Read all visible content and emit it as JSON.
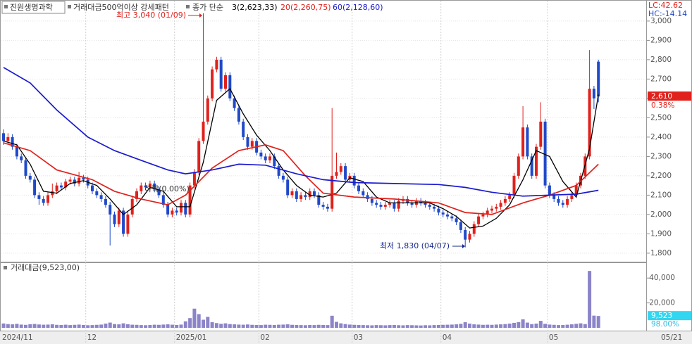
{
  "chart_data": {
    "type": "candlestick",
    "title": "진원생명과학",
    "subtitle": "거래대금500억이상 강세패턴",
    "ma_label": "종가 단순",
    "lc": "LC:42.62",
    "hc": "HC:-14.14",
    "annotations": [
      "최고 3,040 (01/09)",
      "최저 1,830 (04/07)",
      "하락(0.00%)"
    ],
    "up_color": "#e0211c",
    "down_color": "#1f49c9",
    "ylim": [
      1756,
      3105
    ],
    "yticks": [
      {
        "value": 1800,
        "label": "1,800"
      },
      {
        "value": 1900,
        "label": "1,900"
      },
      {
        "value": 2000,
        "label": "2,000"
      },
      {
        "value": 2100,
        "label": "2,100"
      },
      {
        "value": 2200,
        "label": "2,200"
      },
      {
        "value": 2300,
        "label": "2,300"
      },
      {
        "value": 2400,
        "label": "2,400"
      },
      {
        "value": 2500,
        "label": "2,500"
      },
      {
        "value": 2600,
        "label": "2,600"
      },
      {
        "value": 2700,
        "label": "2,700"
      },
      {
        "value": 2800,
        "label": "2,800"
      },
      {
        "value": 2900,
        "label": "2,900"
      },
      {
        "value": 3000,
        "label": "3,000"
      }
    ],
    "grid": true,
    "x_ticks": [
      {
        "value": 0,
        "label": "2024/11"
      },
      {
        "value": 19,
        "label": "12"
      },
      {
        "value": 39,
        "label": "2025/01"
      },
      {
        "value": 58,
        "label": "02"
      },
      {
        "value": 79,
        "label": "03"
      },
      {
        "value": 99,
        "label": "04"
      },
      {
        "value": 123,
        "label": "05"
      }
    ],
    "last_date": "05/21",
    "ohlc": [
      [
        2420,
        2440,
        2360,
        2380
      ],
      [
        2380,
        2420,
        2365,
        2400
      ],
      [
        2400,
        2415,
        2335,
        2350
      ],
      [
        2350,
        2365,
        2285,
        2300
      ],
      [
        2300,
        2315,
        2265,
        2280
      ],
      [
        2280,
        2295,
        2185,
        2200
      ],
      [
        2200,
        2215,
        2165,
        2180
      ],
      [
        2180,
        2195,
        2085,
        2100
      ],
      [
        2100,
        2115,
        2050,
        2080
      ],
      [
        2080,
        2095,
        2045,
        2060
      ],
      [
        2060,
        2115,
        2045,
        2100
      ],
      [
        2100,
        2160,
        2085,
        2120
      ],
      [
        2120,
        2165,
        2105,
        2150
      ],
      [
        2150,
        2165,
        2125,
        2140
      ],
      [
        2140,
        2185,
        2125,
        2170
      ],
      [
        2170,
        2195,
        2155,
        2180
      ],
      [
        2180,
        2195,
        2145,
        2160
      ],
      [
        2160,
        2220,
        2145,
        2190
      ],
      [
        2190,
        2205,
        2165,
        2180
      ],
      [
        2180,
        2195,
        2135,
        2150
      ],
      [
        2150,
        2165,
        2105,
        2120
      ],
      [
        2120,
        2135,
        2085,
        2100
      ],
      [
        2100,
        2115,
        2065,
        2080
      ],
      [
        2080,
        2095,
        2035,
        2050
      ],
      [
        2050,
        2065,
        1840,
        2000
      ],
      [
        2000,
        2015,
        1935,
        1950
      ],
      [
        1950,
        2035,
        1935,
        2020
      ],
      [
        2020,
        2035,
        1885,
        1900
      ],
      [
        1900,
        2015,
        1885,
        2000
      ],
      [
        2000,
        2095,
        1985,
        2080
      ],
      [
        2080,
        2135,
        2065,
        2120
      ],
      [
        2120,
        2165,
        2105,
        2150
      ],
      [
        2150,
        2165,
        2125,
        2140
      ],
      [
        2140,
        2175,
        2125,
        2160
      ],
      [
        2160,
        2175,
        2115,
        2130
      ],
      [
        2130,
        2145,
        2085,
        2100
      ],
      [
        2100,
        2115,
        2035,
        2050
      ],
      [
        2050,
        2065,
        1985,
        2000
      ],
      [
        2000,
        2035,
        1985,
        2020
      ],
      [
        2020,
        2035,
        1995,
        2010
      ],
      [
        2010,
        2075,
        1995,
        2060
      ],
      [
        2060,
        2075,
        1985,
        2000
      ],
      [
        2000,
        2165,
        1985,
        2150
      ],
      [
        2150,
        2235,
        2135,
        2220
      ],
      [
        2220,
        2395,
        2205,
        2380
      ],
      [
        2380,
        3040,
        2365,
        2480
      ],
      [
        2480,
        2615,
        2465,
        2600
      ],
      [
        2600,
        2765,
        2585,
        2750
      ],
      [
        2750,
        2815,
        2735,
        2800
      ],
      [
        2800,
        2815,
        2635,
        2650
      ],
      [
        2650,
        2735,
        2635,
        2720
      ],
      [
        2720,
        2735,
        2585,
        2600
      ],
      [
        2600,
        2615,
        2535,
        2550
      ],
      [
        2550,
        2565,
        2465,
        2480
      ],
      [
        2480,
        2495,
        2385,
        2400
      ],
      [
        2400,
        2415,
        2335,
        2350
      ],
      [
        2350,
        2395,
        2335,
        2380
      ],
      [
        2380,
        2395,
        2305,
        2320
      ],
      [
        2320,
        2335,
        2285,
        2300
      ],
      [
        2300,
        2315,
        2265,
        2280
      ],
      [
        2280,
        2315,
        2265,
        2300
      ],
      [
        2300,
        2315,
        2235,
        2250
      ],
      [
        2250,
        2265,
        2185,
        2200
      ],
      [
        2200,
        2215,
        2165,
        2180
      ],
      [
        2180,
        2195,
        2085,
        2100
      ],
      [
        2100,
        2135,
        2085,
        2120
      ],
      [
        2120,
        2135,
        2065,
        2080
      ],
      [
        2080,
        2115,
        2065,
        2100
      ],
      [
        2100,
        2115,
        2075,
        2090
      ],
      [
        2090,
        2135,
        2075,
        2120
      ],
      [
        2120,
        2135,
        2085,
        2100
      ],
      [
        2100,
        2115,
        2035,
        2050
      ],
      [
        2050,
        2065,
        2025,
        2040
      ],
      [
        2040,
        2055,
        2015,
        2030
      ],
      [
        2030,
        2550,
        2015,
        2200
      ],
      [
        2200,
        2320,
        2185,
        2220
      ],
      [
        2220,
        2265,
        2205,
        2250
      ],
      [
        2250,
        2265,
        2165,
        2180
      ],
      [
        2180,
        2215,
        2165,
        2200
      ],
      [
        2200,
        2215,
        2135,
        2150
      ],
      [
        2150,
        2165,
        2105,
        2120
      ],
      [
        2120,
        2135,
        2085,
        2100
      ],
      [
        2100,
        2115,
        2065,
        2080
      ],
      [
        2080,
        2095,
        2045,
        2060
      ],
      [
        2060,
        2075,
        2035,
        2050
      ],
      [
        2050,
        2065,
        2025,
        2040
      ],
      [
        2040,
        2065,
        2025,
        2050
      ],
      [
        2050,
        2075,
        2035,
        2060
      ],
      [
        2060,
        2075,
        2015,
        2030
      ],
      [
        2030,
        2085,
        2015,
        2070
      ],
      [
        2070,
        2095,
        2055,
        2080
      ],
      [
        2080,
        2095,
        2045,
        2060
      ],
      [
        2060,
        2075,
        2035,
        2050
      ],
      [
        2050,
        2085,
        2035,
        2070
      ],
      [
        2070,
        2085,
        2045,
        2060
      ],
      [
        2060,
        2075,
        2035,
        2050
      ],
      [
        2050,
        2065,
        2025,
        2040
      ],
      [
        2040,
        2055,
        2015,
        2030
      ],
      [
        2030,
        2045,
        1995,
        2010
      ],
      [
        2010,
        2025,
        1985,
        2000
      ],
      [
        2000,
        2015,
        1975,
        1990
      ],
      [
        1990,
        2005,
        1965,
        1980
      ],
      [
        1980,
        1995,
        1945,
        1960
      ],
      [
        1960,
        1975,
        1905,
        1920
      ],
      [
        1920,
        1935,
        1830,
        1870
      ],
      [
        1870,
        1915,
        1855,
        1900
      ],
      [
        1900,
        1965,
        1885,
        1950
      ],
      [
        1950,
        2005,
        1935,
        1990
      ],
      [
        1990,
        2015,
        1975,
        2000
      ],
      [
        2000,
        2035,
        1985,
        2020
      ],
      [
        2020,
        2045,
        2005,
        2030
      ],
      [
        2030,
        2055,
        2015,
        2040
      ],
      [
        2040,
        2075,
        2025,
        2060
      ],
      [
        2060,
        2095,
        2045,
        2080
      ],
      [
        2080,
        2115,
        2065,
        2100
      ],
      [
        2100,
        2215,
        2085,
        2200
      ],
      [
        2200,
        2315,
        2185,
        2300
      ],
      [
        2300,
        2560,
        2285,
        2450
      ],
      [
        2450,
        2465,
        2285,
        2300
      ],
      [
        2300,
        2315,
        2185,
        2200
      ],
      [
        2200,
        2365,
        2185,
        2350
      ],
      [
        2350,
        2580,
        2335,
        2480
      ],
      [
        2480,
        2495,
        2135,
        2150
      ],
      [
        2150,
        2165,
        2085,
        2100
      ],
      [
        2100,
        2115,
        2065,
        2080
      ],
      [
        2080,
        2095,
        2045,
        2060
      ],
      [
        2060,
        2075,
        2035,
        2050
      ],
      [
        2050,
        2095,
        2035,
        2080
      ],
      [
        2080,
        2115,
        2065,
        2100
      ],
      [
        2100,
        2165,
        2085,
        2150
      ],
      [
        2150,
        2215,
        2135,
        2200
      ],
      [
        2200,
        2315,
        2185,
        2300
      ],
      [
        2300,
        2850,
        2285,
        2650
      ],
      [
        2650,
        2665,
        2545,
        2600
      ],
      [
        2790,
        2800,
        2580,
        2610
      ]
    ],
    "series": [
      {
        "name": "3(2,623,33)",
        "color": "#000000",
        "x": [
          0,
          3,
          6,
          9,
          12,
          15,
          18,
          21,
          24,
          27,
          30,
          33,
          36,
          39,
          42,
          45,
          48,
          51,
          54,
          57,
          60,
          63,
          66,
          69,
          72,
          75,
          78,
          81,
          84,
          87,
          90,
          93,
          96,
          99,
          102,
          105,
          108,
          111,
          114,
          117,
          120,
          123,
          126,
          129,
          132,
          134
        ],
        "values": [
          2380,
          2360,
          2260,
          2120,
          2110,
          2160,
          2175,
          2150,
          2080,
          2000,
          2050,
          2140,
          2120,
          2040,
          2040,
          2270,
          2590,
          2650,
          2520,
          2410,
          2330,
          2230,
          2150,
          2100,
          2090,
          2110,
          2190,
          2170,
          2090,
          2060,
          2060,
          2060,
          2060,
          2030,
          1990,
          1930,
          1940,
          1980,
          2050,
          2180,
          2330,
          2300,
          2170,
          2090,
          2340,
          2620
        ]
      },
      {
        "name": "20(2,260,75)",
        "color": "#e0211c",
        "x": [
          0,
          6,
          12,
          20,
          25,
          31,
          37,
          41,
          47,
          53,
          59,
          63,
          68,
          72,
          79,
          88,
          98,
          104,
          110,
          117,
          123,
          129,
          134
        ],
        "values": [
          2370,
          2330,
          2230,
          2180,
          2120,
          2080,
          2050,
          2100,
          2240,
          2330,
          2360,
          2330,
          2200,
          2110,
          2090,
          2080,
          2060,
          2010,
          2000,
          2060,
          2100,
          2150,
          2260
        ]
      },
      {
        "name": "60(2,128,60)",
        "color": "#1a1ad0",
        "x": [
          0,
          6,
          12,
          19,
          25,
          31,
          37,
          41,
          47,
          53,
          59,
          66,
          72,
          79,
          88,
          98,
          104,
          110,
          117,
          123,
          129,
          134
        ],
        "values": [
          2760,
          2680,
          2540,
          2400,
          2330,
          2280,
          2230,
          2210,
          2230,
          2260,
          2255,
          2210,
          2180,
          2165,
          2160,
          2155,
          2140,
          2115,
          2095,
          2100,
          2105,
          2125
        ]
      }
    ],
    "price_tag": {
      "value": 2610,
      "label": "2,610"
    },
    "change_label": "0.38%",
    "volume": {
      "title": "거래대금(9,523,00)",
      "color": "#8c84c8",
      "ylim": [
        0,
        52000
      ],
      "yticks": [
        {
          "value": 20000,
          "label": "20,000"
        },
        {
          "value": 40000,
          "label": "40,000"
        }
      ],
      "tag": {
        "value": 9523,
        "label": "9,523"
      },
      "tag_pct": "98.00%",
      "values": [
        3500,
        3000,
        2800,
        3200,
        2600,
        2400,
        2900,
        3100,
        2700,
        2500,
        2600,
        2800,
        2400,
        2300,
        2500,
        2200,
        2400,
        2600,
        2300,
        2100,
        2200,
        2400,
        2600,
        3400,
        4200,
        3000,
        2800,
        3600,
        2900,
        2500,
        2400,
        2200,
        2100,
        2300,
        2500,
        2400,
        2600,
        2800,
        2500,
        2300,
        2600,
        5200,
        7800,
        15400,
        11000,
        6500,
        8800,
        4500,
        3800,
        3200,
        3600,
        3000,
        2800,
        2600,
        2500,
        2700,
        2400,
        2300,
        2200,
        2500,
        2400,
        2300,
        2500,
        2600,
        2800,
        2400,
        2300,
        2200,
        2100,
        2300,
        2200,
        2400,
        2300,
        2200,
        9700,
        4800,
        3600,
        3000,
        2600,
        2400,
        2300,
        2200,
        2100,
        2000,
        2200,
        2100,
        2000,
        2200,
        2300,
        2100,
        2000,
        2200,
        2100,
        2000,
        1900,
        2100,
        2000,
        2200,
        2300,
        2400,
        2500,
        2600,
        2800,
        3200,
        4500,
        3400,
        2800,
        2600,
        2400,
        2500,
        2400,
        2600,
        2800,
        3000,
        3400,
        4000,
        4600,
        6800,
        4200,
        3000,
        3400,
        5600,
        3200,
        2600,
        2400,
        2200,
        2300,
        2500,
        2800,
        3200,
        3600,
        3000,
        45700,
        9800,
        9523
      ]
    }
  }
}
